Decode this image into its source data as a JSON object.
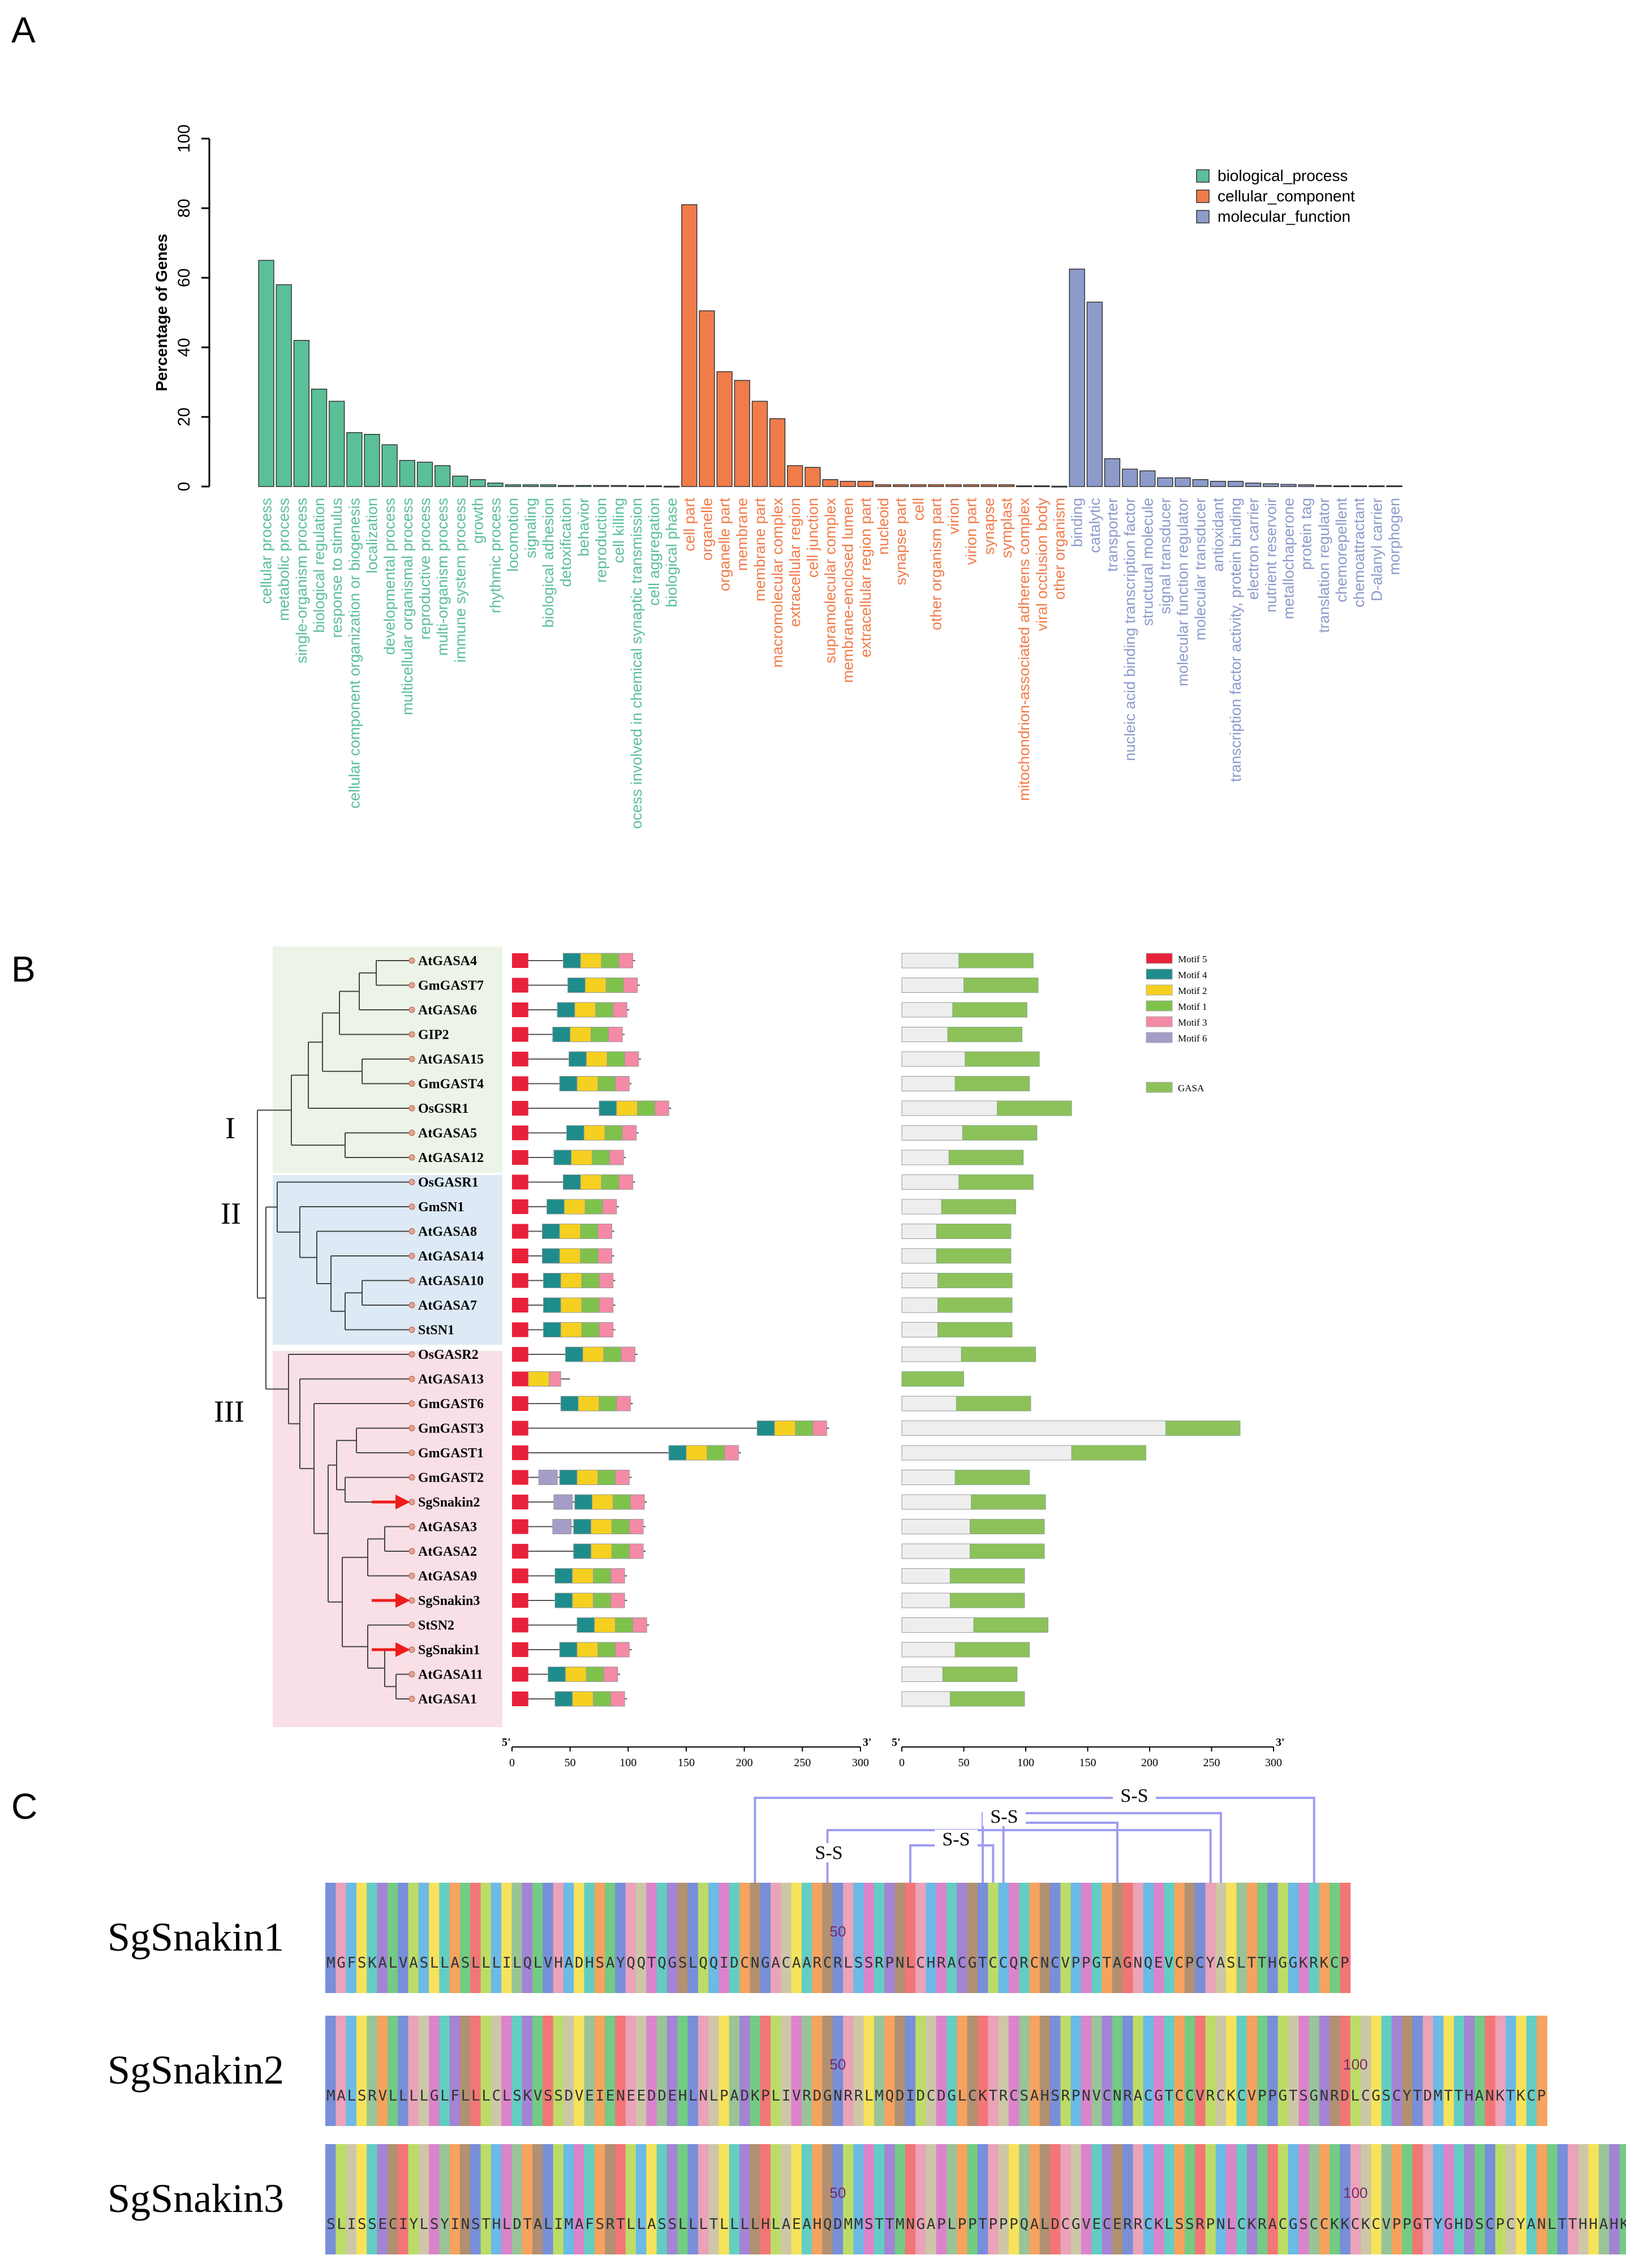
{
  "panels": {
    "a": "A",
    "b": "B",
    "c": "C"
  },
  "colors": {
    "biological_process": "#5bbf98",
    "cellular_component": "#f07c4b",
    "molecular_function": "#8d9bcb",
    "tree_bg_I": "#ebf4e7",
    "tree_bg_II": "#ddeaf6",
    "tree_bg_III": "#f9dfe6",
    "gasa": "#8dc15a",
    "motif5": "#e8213a",
    "motif4": "#1f8c8c",
    "motif2": "#f5d020",
    "motif1": "#7ec24c",
    "motif3": "#f48aa5",
    "motif6": "#a59cc8"
  },
  "chart_data": {
    "type": "bar",
    "ylabel": "Percentage of Genes",
    "yticks": [
      "0",
      "20",
      "40",
      "60",
      "80",
      "100"
    ],
    "ylim": [
      0,
      100
    ],
    "legend": [
      {
        "key": "biological_process",
        "label": "biological_process"
      },
      {
        "key": "cellular_component",
        "label": "cellular_component"
      },
      {
        "key": "molecular_function",
        "label": "molecular_function"
      }
    ],
    "series": [
      {
        "name": "biological_process",
        "categories": [
          "cellular process",
          "metabolic process",
          "single-organism process",
          "biological regulation",
          "response to stimulus",
          "cellular component organization or biogenesis",
          "localization",
          "developmental process",
          "multicellular organismal process",
          "reproductive process",
          "multi-organism process",
          "immune system process",
          "growth",
          "rhythmic process",
          "locomotion",
          "signaling",
          "biological adhesion",
          "detoxification",
          "behavior",
          "reproduction",
          "cell killing",
          "ocess involved in chemical synaptic transmission",
          "cell aggregation",
          "biological phase"
        ],
        "values": [
          65,
          58,
          42,
          28,
          24.5,
          15.5,
          15,
          12,
          7.5,
          7,
          6,
          3,
          2,
          1,
          0.5,
          0.5,
          0.5,
          0.3,
          0.3,
          0.3,
          0.3,
          0.2,
          0.2,
          0.1
        ]
      },
      {
        "name": "cellular_component",
        "categories": [
          "cell part",
          "organelle",
          "organelle part",
          "membrane",
          "membrane part",
          "macromolecular complex",
          "extracellular region",
          "cell junction",
          "supramolecular complex",
          "membrane-enclosed lumen",
          "extracellular region part",
          "nucleoid",
          "synapse part",
          "cell",
          "other organism part",
          "virion",
          "virion part",
          "synapse",
          "symplast",
          "mitochondrion-associated adherens complex",
          "viral occlusion body",
          "other organism"
        ],
        "values": [
          81,
          50.5,
          33,
          30.5,
          24.5,
          19.5,
          6,
          5.5,
          2,
          1.5,
          1.5,
          0.5,
          0.5,
          0.5,
          0.5,
          0.5,
          0.5,
          0.5,
          0.5,
          0.2,
          0.2,
          0.1
        ]
      },
      {
        "name": "molecular_function",
        "categories": [
          "binding",
          "catalytic",
          "transporter",
          "nucleic acid binding transcription factor",
          "structural molecule",
          "signal transducer",
          "molecular function regulator",
          "molecular transducer",
          "antioxidant",
          "transcription factor activity, protein binding",
          "electron carrier",
          "nutrient reservoir",
          "metallochaperone",
          "protein tag",
          "translation regulator",
          "chemorepellent",
          "chemoattractant",
          "D-alanyl carrier",
          "morphogen"
        ],
        "values": [
          62.5,
          53,
          8,
          5,
          4.5,
          2.5,
          2.5,
          2,
          1.5,
          1.5,
          1,
          0.8,
          0.6,
          0.5,
          0.3,
          0.2,
          0.2,
          0.2,
          0.2
        ]
      }
    ]
  },
  "tree": {
    "clades": [
      "I",
      "II",
      "III"
    ],
    "genes": [
      "AtGASA4",
      "GmGAST7",
      "AtGASA6",
      "GIP2",
      "AtGASA15",
      "GmGAST4",
      "OsGSR1",
      "AtGASA5",
      "AtGASA12",
      "OsGASR1",
      "GmSN1",
      "AtGASA8",
      "AtGASA14",
      "AtGASA10",
      "AtGASA7",
      "StSN1",
      "OsGASR2",
      "AtGASA13",
      "GmGAST6",
      "GmGAST3",
      "GmGAST1",
      "GmGAST2",
      "SgSnakin2",
      "AtGASA3",
      "AtGASA2",
      "AtGASA9",
      "SgSnakin3",
      "StSN2",
      "SgSnakin1",
      "AtGASA11",
      "AtGASA1"
    ],
    "lengths": [
      106,
      110,
      101,
      97,
      111,
      103,
      137,
      109,
      98,
      106,
      92,
      88,
      88,
      89,
      89,
      89,
      108,
      50,
      104,
      273,
      197,
      103,
      116,
      115,
      115,
      99,
      99,
      118,
      103,
      93,
      99
    ],
    "highlighted": [
      "SgSnakin2",
      "SgSnakin3",
      "SgSnakin1"
    ]
  },
  "motif_legend": [
    "Motif 5",
    "Motif 4",
    "Motif 2",
    "Motif 1",
    "Motif 3",
    "Motif 6"
  ],
  "domain_legend": "GASA",
  "scale": {
    "ticks": [
      "0",
      "50",
      "100",
      "150",
      "200",
      "250",
      "300"
    ],
    "left_start": "5'",
    "left_end": "3'",
    "right_start": "5'",
    "right_end": "3'"
  },
  "alignment": {
    "ss_label": "S-S",
    "sequences": [
      {
        "name": "SgSnakin1",
        "seq": "MGFSKALVASLLASLLLILQLVHADHSAYQQTQGSLQQIDCNGACAARCRLSSRPNLCHRACGTCCQRCNCVPPGTAGNQEVCPCYASLTTHGGKRKCP",
        "marks": [
          "50"
        ]
      },
      {
        "name": "SgSnakin2",
        "seq": "MALSRVLLLLGLFLLLCLSKVSSDVEIENEEDDEHLNLPADKPLIVRDGNRRLMQDIDCDGLCKTRCSAHSRPNVCNRACGTCCVRCKCVPPGTSGNRDLCGSCYTDMTTHANKTKCP",
        "marks": [
          "50",
          "100"
        ]
      },
      {
        "name": "SgSnakin3",
        "seq": "SLISSECIYLSYINSTHLDTALIMAFSRTLLASSLLLTLLLLHLAEAHQDMMSTTMNGAPLPPTPPPQALDCGVECERRCKLSSRPNLCKRACGSCCKKCKCVPPGTYGHDSCPCYANLTTHHAHKCP",
        "marks": [
          "50",
          "100"
        ]
      }
    ]
  }
}
